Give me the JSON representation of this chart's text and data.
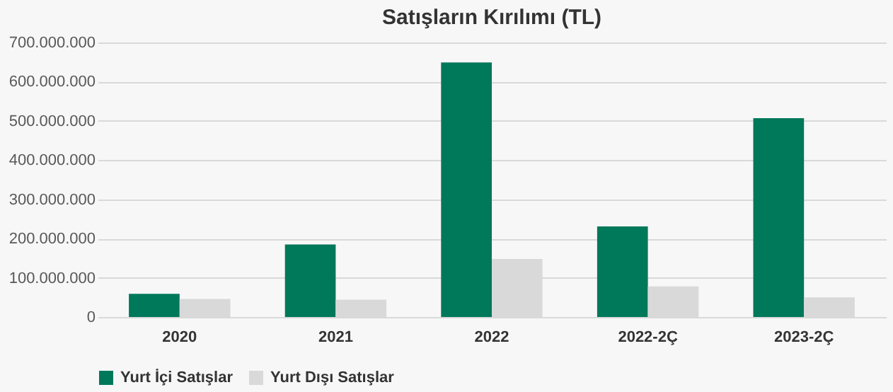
{
  "chart_data": {
    "type": "bar",
    "title": "Satışların Kırılımı (TL)",
    "categories": [
      "2020",
      "2021",
      "2022",
      "2022-2Ç",
      "2023-2Ç"
    ],
    "series": [
      {
        "name": "Yurt İçi Satışlar",
        "color": "#00785a",
        "values": [
          59000000,
          185000000,
          649000000,
          231000000,
          507000000
        ]
      },
      {
        "name": "Yurt Dışı Satışlar",
        "color": "#d9d9d9",
        "values": [
          46000000,
          44000000,
          148000000,
          78000000,
          50000000
        ]
      }
    ],
    "ylim": [
      0,
      700000000
    ],
    "yticks": [
      {
        "value": 0,
        "label": "0"
      },
      {
        "value": 100000000,
        "label": "100.000.000"
      },
      {
        "value": 200000000,
        "label": "200.000.000"
      },
      {
        "value": 300000000,
        "label": "300.000.000"
      },
      {
        "value": 400000000,
        "label": "400.000.000"
      },
      {
        "value": 500000000,
        "label": "500.000.000"
      },
      {
        "value": 600000000,
        "label": "600.000.000"
      },
      {
        "value": 700000000,
        "label": "700.000.000"
      }
    ],
    "grid": "y",
    "legend": "bottom"
  }
}
